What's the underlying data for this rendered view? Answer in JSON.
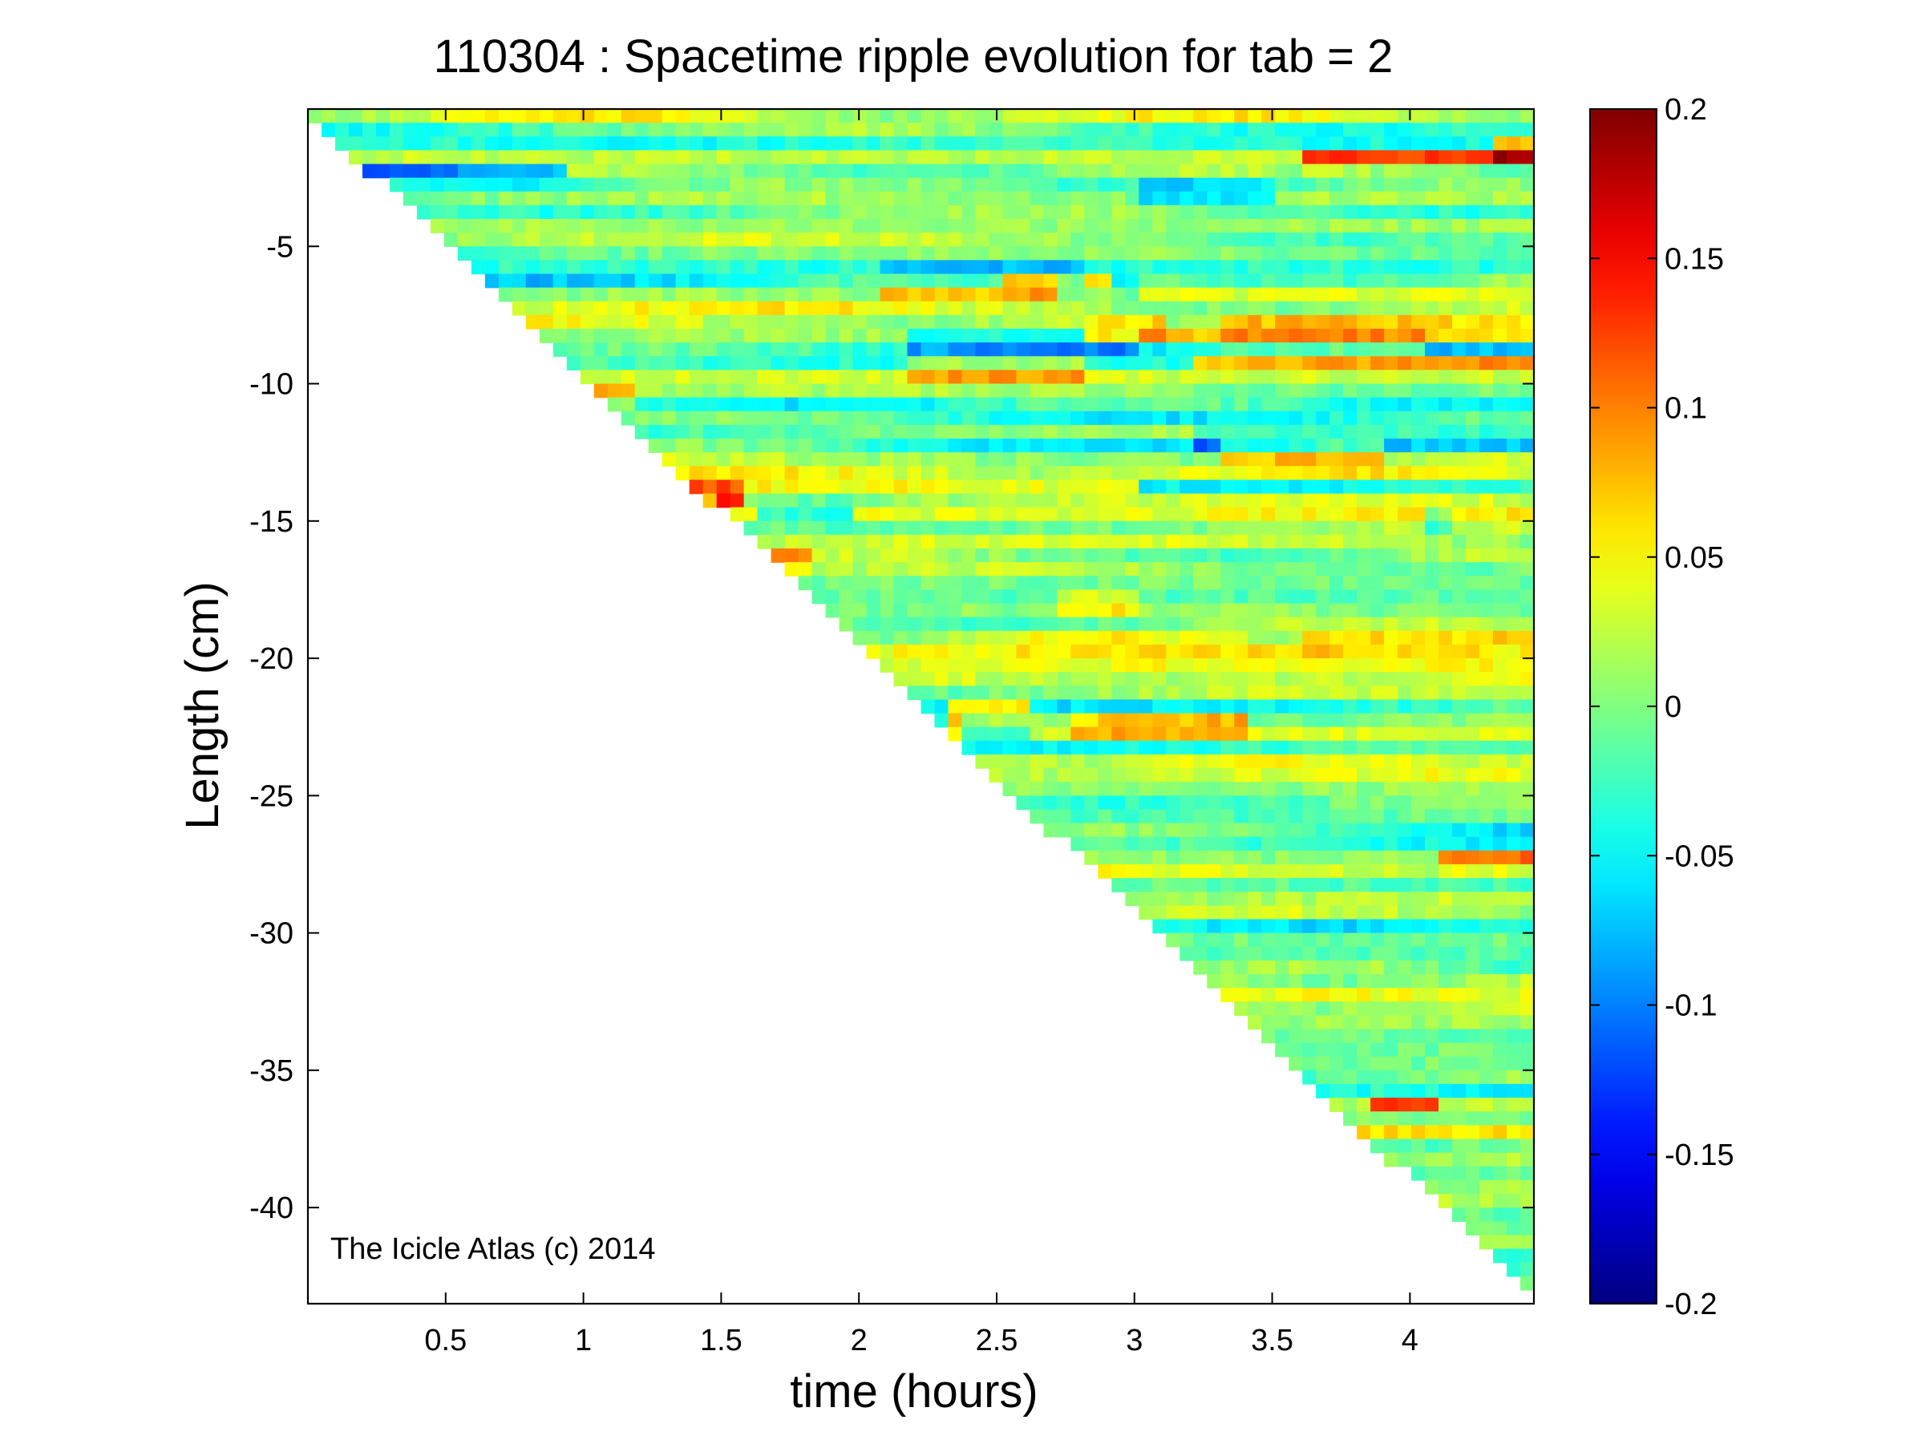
{
  "chart_data": {
    "type": "heatmap",
    "title": "110304 : Spacetime ripple evolution for tab = 2",
    "xlabel": "time (hours)",
    "ylabel": "Length (cm)",
    "xlim": [
      0,
      4.45
    ],
    "ylim": [
      -43.5,
      0
    ],
    "xticks": [
      0.5,
      1,
      1.5,
      2,
      2.5,
      3,
      3.5,
      4
    ],
    "xtick_labels": [
      "0.5",
      "1",
      "1.5",
      "2",
      "2.5",
      "3",
      "3.5",
      "4"
    ],
    "yticks": [
      -5,
      -10,
      -15,
      -20,
      -25,
      -30,
      -35,
      -40
    ],
    "ytick_labels": [
      "-5",
      "-10",
      "-15",
      "-20",
      "-25",
      "-30",
      "-35",
      "-40"
    ],
    "grid": false,
    "colormap": "jet",
    "clim": [
      -0.2,
      0.2
    ],
    "colorbar": {
      "ticks": [
        0.2,
        0.15,
        0.1,
        0.05,
        0,
        -0.05,
        -0.1,
        -0.15,
        -0.2
      ],
      "tick_labels": [
        "0.2",
        "0.15",
        "0.1",
        "0.05",
        "0",
        "-0.05",
        "-0.1",
        "-0.15",
        "-0.2"
      ],
      "placement": "right"
    },
    "data_region": {
      "description": "lower-left triangle blank; icicle length grows linearly from about 0 cm at t=0 to about -43 cm at t=4.45 h",
      "front_start": [
        0.02,
        -0.3
      ],
      "front_end": [
        4.42,
        -43.0
      ]
    },
    "features": [
      {
        "t_start": 2.1,
        "t_end": 2.7,
        "length": -6.5,
        "value": 0.13
      },
      {
        "t_start": 2.5,
        "t_end": 2.9,
        "length": -6.3,
        "value": 0.11
      },
      {
        "t_start": 3.0,
        "t_end": 4.45,
        "length": -6.5,
        "value": 0.09
      },
      {
        "t_start": 2.1,
        "t_end": 2.8,
        "length": -6.1,
        "value": -0.1
      },
      {
        "t_start": 2.2,
        "t_end": 2.8,
        "length": -9.5,
        "value": 0.1
      },
      {
        "t_start": 3.2,
        "t_end": 4.45,
        "length": -9.2,
        "value": 0.12
      },
      {
        "t_start": 2.8,
        "t_end": 4.45,
        "length": -8.2,
        "value": 0.1
      },
      {
        "t_start": 3.1,
        "t_end": 3.3,
        "length": -7.9,
        "value": -0.09
      },
      {
        "t_start": 4.05,
        "t_end": 4.45,
        "length": -8.6,
        "value": -0.11
      },
      {
        "t_start": 2.2,
        "t_end": 3.0,
        "length": -8.5,
        "value": -0.09
      },
      {
        "t_start": 1.35,
        "t_end": 1.6,
        "length": -14.1,
        "value": 0.19
      },
      {
        "t_start": 1.35,
        "t_end": 1.5,
        "length": -14.5,
        "value": -0.13
      },
      {
        "t_start": 1.65,
        "t_end": 2.0,
        "length": -14.7,
        "value": -0.09
      },
      {
        "t_start": 3.3,
        "t_end": 3.9,
        "length": -12.5,
        "value": 0.12
      },
      {
        "t_start": 3.2,
        "t_end": 4.45,
        "length": -12.1,
        "value": -0.1
      },
      {
        "t_start": 3.0,
        "t_end": 4.45,
        "length": -13.8,
        "value": -0.09
      },
      {
        "t_start": 1.7,
        "t_end": 1.85,
        "length": -16.4,
        "value": 0.1
      },
      {
        "t_start": 2.32,
        "t_end": 2.6,
        "length": -22.0,
        "value": 0.2
      },
      {
        "t_start": 2.6,
        "t_end": 3.4,
        "length": -22.4,
        "value": 0.13
      },
      {
        "t_start": 2.35,
        "t_end": 2.75,
        "length": -22.5,
        "value": -0.1
      },
      {
        "t_start": 0.15,
        "t_end": 0.95,
        "length": -2.3,
        "value": -0.11
      },
      {
        "t_start": 3.6,
        "t_end": 4.45,
        "length": -1.8,
        "value": 0.11
      },
      {
        "t_start": 4.3,
        "t_end": 4.45,
        "length": -1.4,
        "value": 0.17
      },
      {
        "t_start": 3.0,
        "t_end": 3.5,
        "length": -3.1,
        "value": -0.09
      },
      {
        "t_start": 1.0,
        "t_end": 1.2,
        "length": -10.4,
        "value": 0.11
      },
      {
        "t_start": 2.7,
        "t_end": 3.0,
        "length": -18.0,
        "value": 0.09
      },
      {
        "t_start": 3.85,
        "t_end": 4.1,
        "length": -36.2,
        "value": 0.11
      },
      {
        "t_start": 4.05,
        "t_end": 4.15,
        "length": -15.0,
        "value": -0.1
      },
      {
        "t_start": 4.1,
        "t_end": 4.45,
        "length": -27.3,
        "value": 0.09
      },
      {
        "t_start": 3.6,
        "t_end": 4.45,
        "length": -19.3,
        "value": 0.08
      }
    ]
  },
  "annotation": "The Icicle Atlas (c) 2014"
}
